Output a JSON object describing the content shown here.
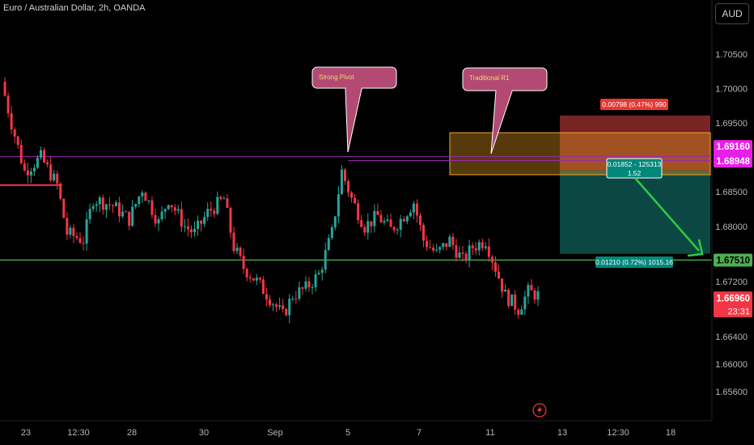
{
  "header": {
    "symbol_title": "Euro / Australian Dollar, 2h, OANDA",
    "currency": "AUD"
  },
  "colors": {
    "background": "#000000",
    "up": "#26a69a",
    "down": "#f23645",
    "support_line": "#4caf50",
    "magenta_label": "#e91ee9",
    "pink_callout": "#b24a73",
    "orange_zone": "#f5a623",
    "stop_zone": "#8b2a2a",
    "target_zone": "#0e5a55",
    "arrow": "#2ecc40"
  },
  "chart_data": {
    "type": "candlestick",
    "title": "Euro / Australian Dollar, 2h, OANDA",
    "ylim": [
      1.652,
      1.711
    ],
    "y_ticks": [
      "1.70500",
      "1.70000",
      "1.69500",
      "1.68500",
      "1.68000",
      "1.67500",
      "1.67200",
      "1.66800",
      "1.66400",
      "1.66000",
      "1.65600"
    ],
    "x_ticks": [
      "23",
      "12:30",
      "28",
      "30",
      "Sep",
      "5",
      "7",
      "11",
      "13",
      "12:30",
      "18"
    ],
    "waypoints": [
      [
        0,
        1.701
      ],
      [
        3,
        1.695
      ],
      [
        7,
        1.688
      ],
      [
        12,
        1.69
      ],
      [
        17,
        1.686
      ],
      [
        20,
        1.679
      ],
      [
        25,
        1.678
      ],
      [
        28,
        1.684
      ],
      [
        34,
        1.683
      ],
      [
        39,
        1.681
      ],
      [
        43,
        1.6855
      ],
      [
        48,
        1.6805
      ],
      [
        51,
        1.684
      ],
      [
        56,
        1.68
      ],
      [
        59,
        1.679
      ],
      [
        63,
        1.682
      ],
      [
        68,
        1.684
      ],
      [
        71,
        1.677
      ],
      [
        74,
        1.674
      ],
      [
        78,
        1.672
      ],
      [
        83,
        1.669
      ],
      [
        86,
        1.667
      ],
      [
        89,
        1.67
      ],
      [
        93,
        1.671
      ],
      [
        97,
        1.673
      ],
      [
        101,
        1.679
      ],
      [
        104,
        1.688
      ],
      [
        107,
        1.684
      ],
      [
        111,
        1.68
      ],
      [
        115,
        1.6815
      ],
      [
        119,
        1.6795
      ],
      [
        122,
        1.681
      ],
      [
        126,
        1.6835
      ],
      [
        129,
        1.678
      ],
      [
        133,
        1.676
      ],
      [
        137,
        1.678
      ],
      [
        141,
        1.675
      ],
      [
        144,
        1.677
      ],
      [
        148,
        1.678
      ],
      [
        151,
        1.674
      ],
      [
        154,
        1.67
      ],
      [
        158,
        1.668
      ],
      [
        161,
        1.6705
      ],
      [
        164,
        1.67
      ]
    ],
    "last_price": "1.66960",
    "countdown": "23:31",
    "levels": [
      {
        "name": "strong-pivot",
        "price_label": "1.68987"
      },
      {
        "name": "traditional-r1",
        "price_label": "1.68948"
      },
      {
        "name": "support",
        "price_label": "1.67510"
      },
      {
        "name": "stop",
        "price_label": "1.69160"
      }
    ],
    "callouts": [
      {
        "label": "Strong Pivot"
      },
      {
        "label": "Traditional R1"
      }
    ],
    "position_labels": {
      "stop": "0.00798 (0.47%) 990",
      "entry_line1": "0.01852 - 125313",
      "entry_line2": "1.52",
      "target": "0.01210 (0.72%) 1015.16"
    }
  }
}
